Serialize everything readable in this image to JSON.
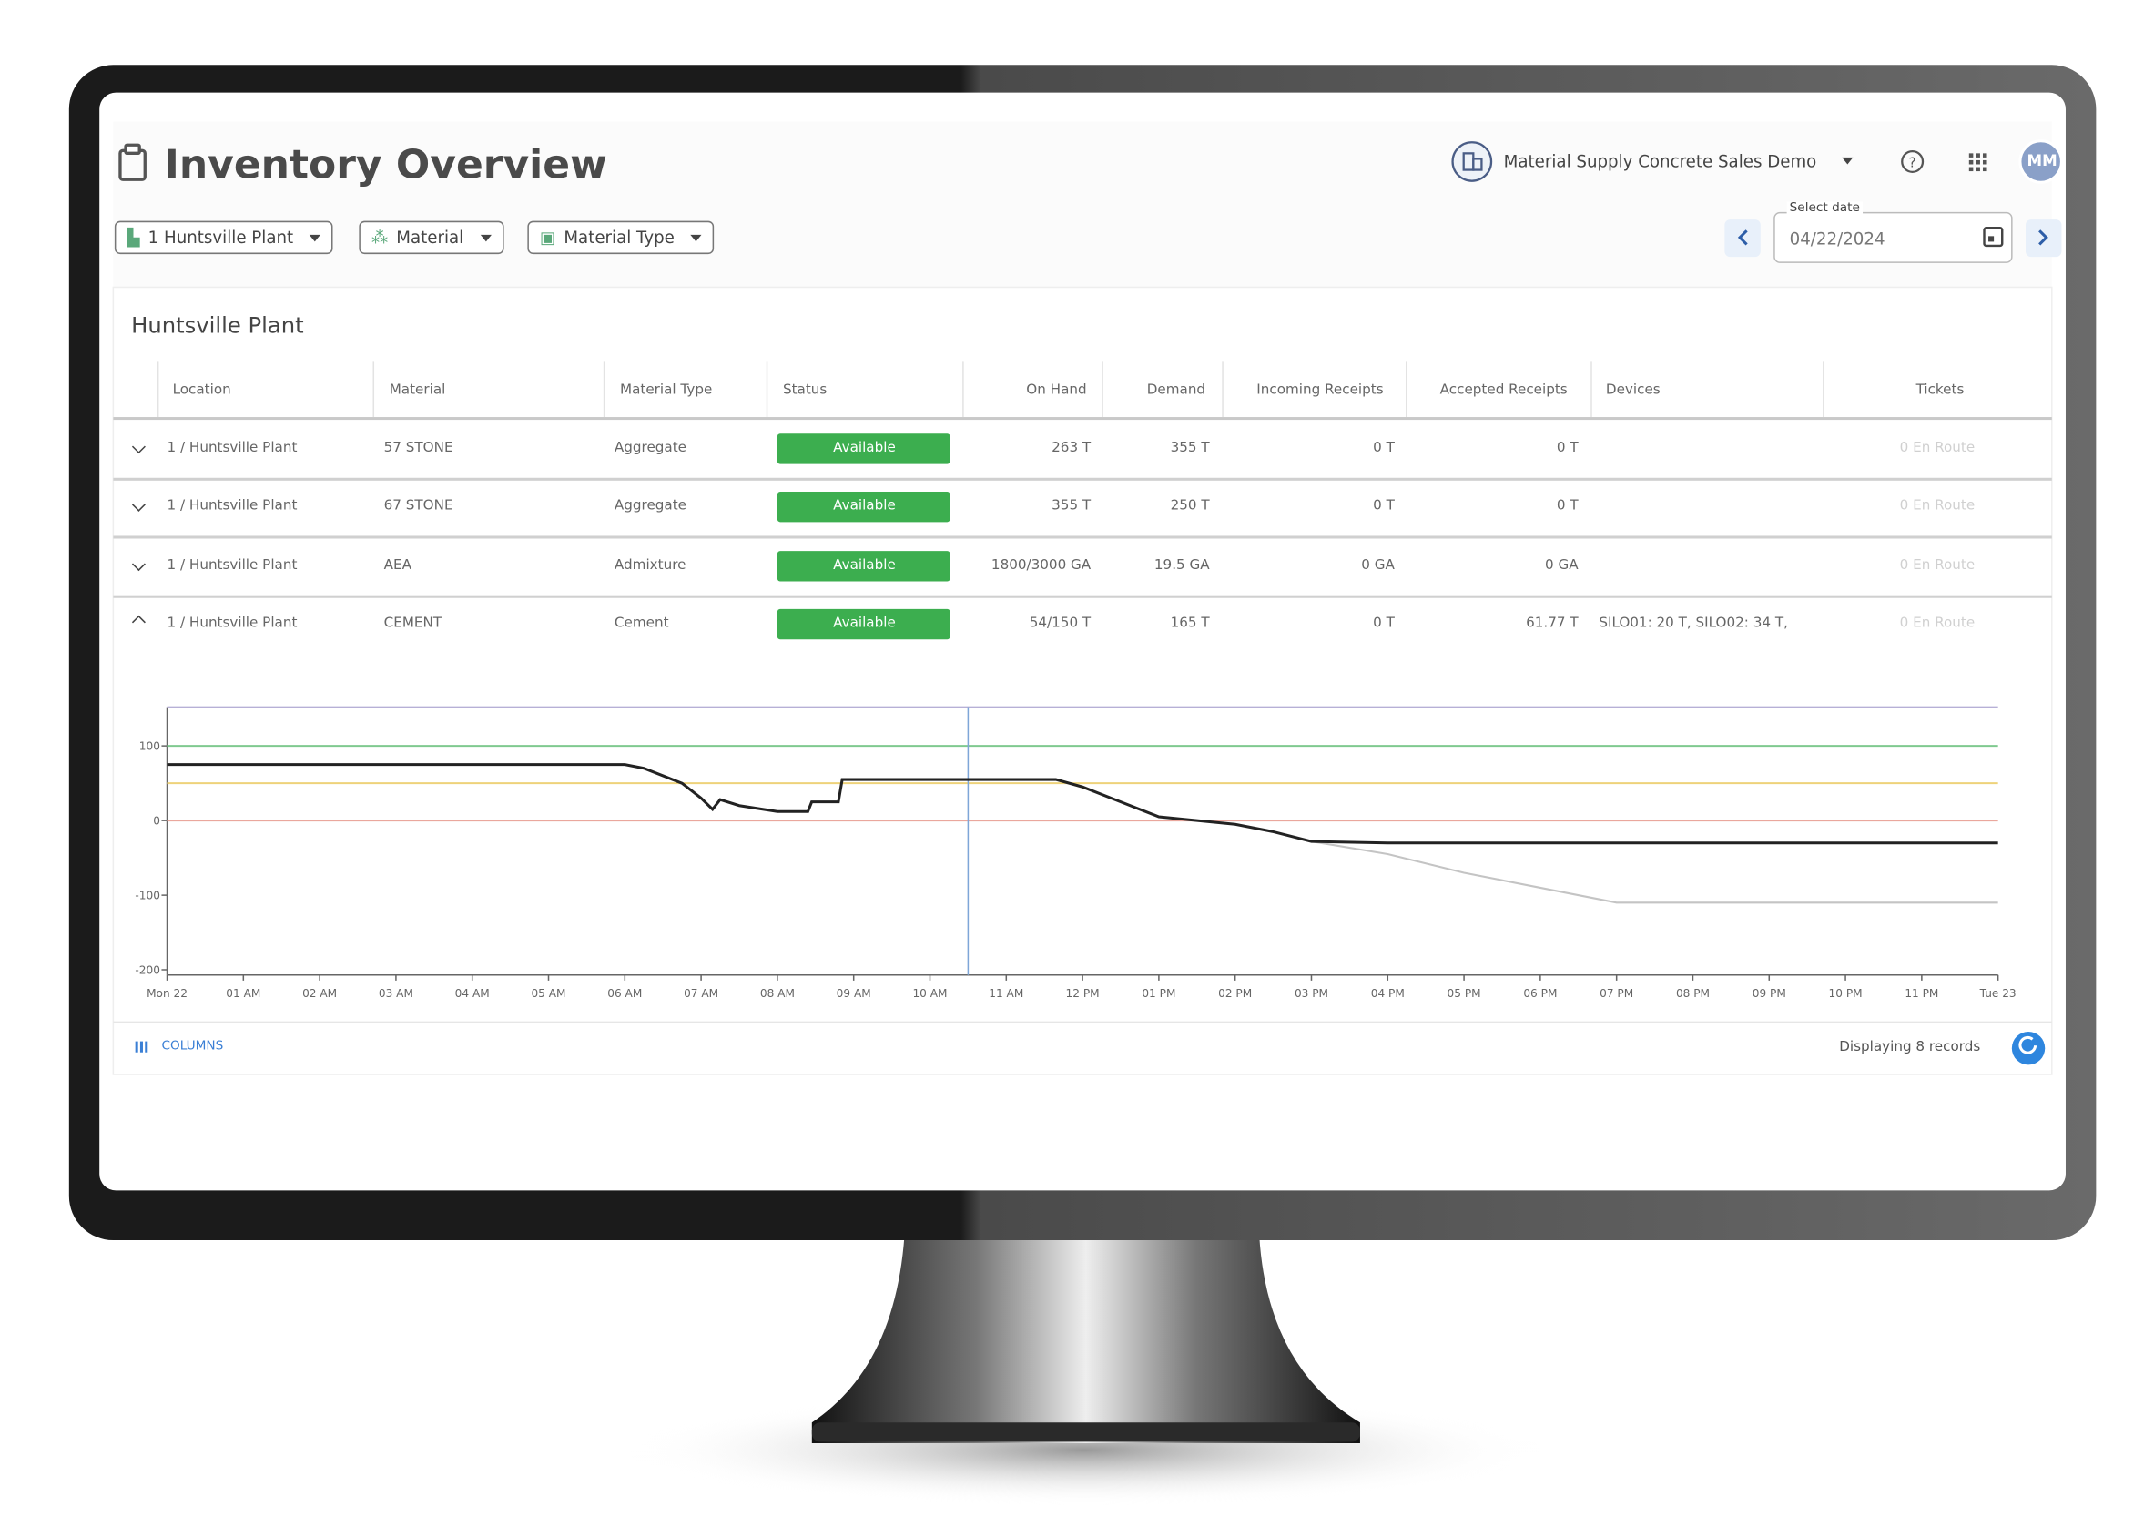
{
  "header": {
    "title": "Inventory Overview",
    "account": "Material Supply Concrete Sales Demo",
    "avatar": "MM"
  },
  "filters": [
    "1 Huntsville Plant",
    "Material",
    "Material Type"
  ],
  "date_picker": {
    "label": "Select date",
    "value": "04/22/2024"
  },
  "section_title": "Huntsville Plant",
  "table": {
    "columns": [
      "Location",
      "Material",
      "Material Type",
      "Status",
      "On Hand",
      "Demand",
      "Incoming Receipts",
      "Accepted Receipts",
      "Devices",
      "Tickets"
    ],
    "rows": [
      [
        "1 / Huntsville Plant",
        "57 STONE",
        "Aggregate",
        "Available",
        "263 T",
        "355 T",
        "0 T",
        "0 T",
        null,
        "0 En Route"
      ],
      [
        "1 / Huntsville Plant",
        "67 STONE",
        "Aggregate",
        "Available",
        "355 T",
        "250 T",
        "0 T",
        "0 T",
        null,
        "0 En Route"
      ],
      [
        "1 / Huntsville Plant",
        "AEA",
        "Admixture",
        "Available",
        "1800/3000 GA",
        "19.5 GA",
        "0 GA",
        "0 GA",
        null,
        "0 En Route"
      ],
      [
        "1 / Huntsville Plant",
        "CEMENT",
        "Cement",
        "Available",
        "54/150 T",
        "165 T",
        "0 T",
        "61.77 T",
        "SILO01: 20 T, SILO02: 34 T,",
        "0 En Route"
      ]
    ]
  },
  "chart_data": {
    "type": "line",
    "x": [
      0,
      6,
      6.25,
      6.5,
      6.75,
      7,
      7.15,
      7.25,
      7.5,
      8,
      8.4,
      8.45,
      8.8,
      8.85,
      10,
      11,
      11.65,
      12,
      12.5,
      13,
      13.5,
      14,
      14.5,
      15,
      16,
      17,
      18,
      19,
      20,
      21,
      22,
      23,
      24
    ],
    "series": [
      {
        "color": "#222222",
        "values": [
          75,
          75,
          70,
          60,
          50,
          30,
          15,
          28,
          20,
          12,
          12,
          25,
          25,
          55,
          55,
          55,
          55,
          45,
          25,
          5,
          0,
          -5,
          -15,
          -28,
          -30,
          -30,
          -30,
          -30,
          -30,
          -30,
          -30,
          -30,
          -30
        ]
      },
      {
        "color": "#c4c4c4",
        "values": [
          null,
          null,
          null,
          null,
          null,
          null,
          null,
          null,
          null,
          null,
          null,
          null,
          null,
          null,
          null,
          null,
          null,
          null,
          null,
          null,
          null,
          null,
          null,
          -28,
          -45,
          -70,
          -90,
          -110,
          -110,
          -110,
          -110,
          -110,
          -110
        ]
      }
    ],
    "reference_lines": [
      {
        "value": 152,
        "color": "#b7b0d6"
      },
      {
        "value": 100,
        "color": "#7fc98f"
      },
      {
        "value": 50,
        "color": "#eed27a"
      },
      {
        "value": 0,
        "color": "#eaa79d"
      }
    ],
    "current_time": {
      "value": 10.5,
      "color": "#7ea6d8"
    },
    "xlim": [
      0,
      24
    ],
    "ylim": [
      -207,
      152
    ],
    "xticks": [
      {
        "value": 0,
        "label": "Mon 22"
      },
      {
        "value": 1,
        "label": "01 AM"
      },
      {
        "value": 2,
        "label": "02 AM"
      },
      {
        "value": 3,
        "label": "03 AM"
      },
      {
        "value": 4,
        "label": "04 AM"
      },
      {
        "value": 5,
        "label": "05 AM"
      },
      {
        "value": 6,
        "label": "06 AM"
      },
      {
        "value": 7,
        "label": "07 AM"
      },
      {
        "value": 8,
        "label": "08 AM"
      },
      {
        "value": 9,
        "label": "09 AM"
      },
      {
        "value": 10,
        "label": "10 AM"
      },
      {
        "value": 11,
        "label": "11 AM"
      },
      {
        "value": 12,
        "label": "12 PM"
      },
      {
        "value": 13,
        "label": "01 PM"
      },
      {
        "value": 14,
        "label": "02 PM"
      },
      {
        "value": 15,
        "label": "03 PM"
      },
      {
        "value": 16,
        "label": "04 PM"
      },
      {
        "value": 17,
        "label": "05 PM"
      },
      {
        "value": 18,
        "label": "06 PM"
      },
      {
        "value": 19,
        "label": "07 PM"
      },
      {
        "value": 20,
        "label": "08 PM"
      },
      {
        "value": 21,
        "label": "09 PM"
      },
      {
        "value": 22,
        "label": "10 PM"
      },
      {
        "value": 23,
        "label": "11 PM"
      },
      {
        "value": 24,
        "label": "Tue 23"
      }
    ],
    "yticks": [
      -200,
      -100,
      0,
      100
    ]
  },
  "footer": {
    "columns_button": "COLUMNS",
    "record_count": "Displaying 8 records"
  }
}
